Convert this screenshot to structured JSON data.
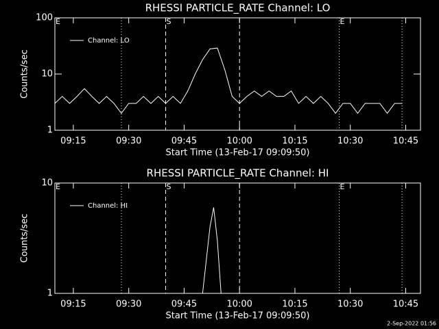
{
  "chart_data": [
    {
      "type": "line",
      "title": "RHESSI  PARTICLE_RATE Channel: LO",
      "x_label": "Start Time (13-Feb-17 09:09:50)",
      "y_label": "Counts/sec",
      "log_y": true,
      "ylim": [
        1,
        100
      ],
      "yticks": [
        1,
        10,
        100
      ],
      "xlim": [
        "09:10",
        "10:49"
      ],
      "xticks": [
        "09:15",
        "09:30",
        "09:45",
        "10:00",
        "10:15",
        "10:30",
        "10:45"
      ],
      "legend": "upper left",
      "events": [
        {
          "x": "09:10",
          "label": "E"
        },
        {
          "x": "09:28",
          "style": "dotted"
        },
        {
          "x": "09:40",
          "style": "dashed",
          "label": "S"
        },
        {
          "x": "10:00",
          "style": "dashed"
        },
        {
          "x": "10:27",
          "style": "dotted",
          "label": "E"
        },
        {
          "x": "10:44",
          "style": "dotted"
        }
      ],
      "x": [
        "09:10",
        "09:12",
        "09:14",
        "09:16",
        "09:18",
        "09:20",
        "09:22",
        "09:24",
        "09:26",
        "09:28",
        "09:30",
        "09:32",
        "09:34",
        "09:36",
        "09:38",
        "09:40",
        "09:42",
        "09:44",
        "09:46",
        "09:48",
        "09:50",
        "09:52",
        "09:54",
        "09:56",
        "09:58",
        "10:00",
        "10:02",
        "10:04",
        "10:06",
        "10:08",
        "10:10",
        "10:12",
        "10:14",
        "10:16",
        "10:18",
        "10:20",
        "10:22",
        "10:24",
        "10:26",
        "10:28",
        "10:30",
        "10:32",
        "10:34",
        "10:36",
        "10:38",
        "10:40",
        "10:42",
        "10:44"
      ],
      "series": [
        {
          "name": "Channel: LO",
          "color": "#ffffff",
          "values": [
            3,
            4,
            3,
            4,
            5.5,
            4,
            3,
            4,
            3,
            2,
            3,
            3,
            4,
            3,
            4,
            3,
            4,
            3,
            5,
            10,
            18,
            28,
            29,
            12,
            4,
            3,
            4,
            5,
            4,
            5,
            4,
            4,
            5,
            3,
            4,
            3,
            4,
            3,
            2,
            3,
            3,
            2,
            3,
            3,
            3,
            2,
            3,
            3
          ]
        }
      ]
    },
    {
      "type": "line",
      "title": "RHESSI  PARTICLE_RATE Channel: HI",
      "x_label": "Start Time (13-Feb-17 09:09:50)",
      "y_label": "Counts/sec",
      "log_y": true,
      "ylim": [
        1,
        10
      ],
      "yticks": [
        1,
        10
      ],
      "xlim": [
        "09:10",
        "10:49"
      ],
      "xticks": [
        "09:15",
        "09:30",
        "09:45",
        "10:00",
        "10:15",
        "10:30",
        "10:45"
      ],
      "legend": "upper left",
      "events": [
        {
          "x": "09:10",
          "label": "E"
        },
        {
          "x": "09:28",
          "style": "dotted"
        },
        {
          "x": "09:40",
          "style": "dashed",
          "label": "S"
        },
        {
          "x": "10:00",
          "style": "dashed"
        },
        {
          "x": "10:27",
          "style": "dotted",
          "label": "E"
        },
        {
          "x": "10:44",
          "style": "dotted"
        }
      ],
      "x": [
        "09:50",
        "09:52",
        "09:53",
        "09:54",
        "09:55"
      ],
      "series": [
        {
          "name": "Channel: HI",
          "color": "#ffffff",
          "values": [
            1,
            4,
            6,
            3,
            1
          ]
        }
      ]
    }
  ],
  "footer": "2-Sep-2022 01:56"
}
